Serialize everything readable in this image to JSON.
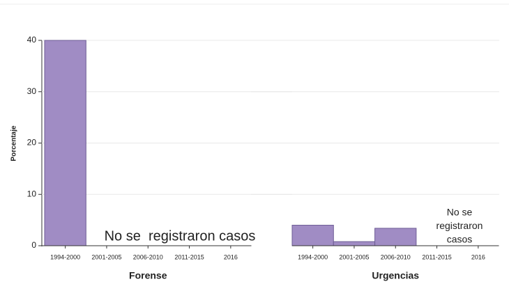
{
  "chart_data": [
    {
      "type": "bar",
      "ylabel": "Porcentaje",
      "xlabel": "Forense",
      "categories": [
        "1994-2000",
        "2001-2005",
        "2006-2010",
        "2011-2015",
        "2016"
      ],
      "values": [
        40,
        null,
        null,
        null,
        null
      ],
      "color": "#a08cc4",
      "ylim": [
        0,
        40
      ],
      "yticks": [
        0,
        10,
        20,
        30,
        40
      ],
      "grid": true,
      "annotation": [
        "No se  registraron casos"
      ]
    },
    {
      "type": "bar",
      "xlabel": "Urgencias",
      "categories": [
        "1994-2000",
        "2001-2005",
        "2006-2010",
        "2011-2015",
        "2016"
      ],
      "values": [
        4,
        0.8,
        3.4,
        null,
        null
      ],
      "color": "#a08cc4",
      "ylim": [
        0,
        40
      ],
      "yticks": [
        0,
        10,
        20,
        30,
        40
      ],
      "grid": true,
      "annotation": [
        "No se",
        "registraron",
        "casos"
      ]
    }
  ]
}
